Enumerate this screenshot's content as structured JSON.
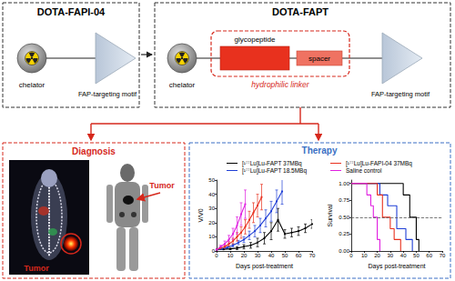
{
  "panels": {
    "fapi04": {
      "title": "DOTA-FAPI-04",
      "chelator": "chelator",
      "motif": "FAP-targeting motif"
    },
    "fapt": {
      "title": "DOTA-FAPT",
      "chelator": "chelator",
      "glycopeptide": "glycopeptide",
      "spacer": "spacer",
      "linker": "hydrophilic linker",
      "motif": "FAP-targeting motif"
    },
    "diagnosis": {
      "title": "Diagnosis",
      "labels": [
        "Tumor",
        "Tumor"
      ]
    },
    "therapy": {
      "title": "Therapy"
    }
  },
  "chart_data": [
    {
      "type": "line",
      "xlabel": "Days post-treatment",
      "ylabel": "V/V0",
      "xlim": [
        0,
        70
      ],
      "xticks": [
        0,
        10,
        20,
        30,
        40,
        50,
        60,
        70
      ],
      "ylim": [
        0,
        50
      ],
      "yticks": [
        0,
        10,
        20,
        30,
        40,
        50
      ],
      "legend": "top",
      "series": [
        {
          "name": "[¹⁷⁷Lu]Lu-FAPT 37MBq",
          "color": "#000000",
          "x": [
            0,
            5,
            10,
            15,
            20,
            25,
            30,
            35,
            40,
            45,
            50,
            55,
            60,
            65,
            70
          ],
          "values": [
            1,
            1.2,
            1.5,
            2,
            3,
            4,
            6,
            9,
            14,
            22,
            12,
            13,
            14,
            16,
            19
          ],
          "errors": [
            0.2,
            0.3,
            0.5,
            1,
            1.5,
            2,
            3,
            4,
            6,
            8,
            3,
            3,
            3,
            3,
            3
          ]
        },
        {
          "name": "[¹⁷⁷Lu]Lu-FAPT 18.5MBq",
          "color": "#1f3fd6",
          "x": [
            0,
            4,
            8,
            12,
            16,
            20,
            24,
            28,
            32,
            36,
            40,
            44,
            48
          ],
          "values": [
            1,
            1.5,
            2.5,
            4,
            6,
            8,
            11,
            14,
            18,
            23,
            28,
            35,
            42
          ],
          "errors": [
            0.2,
            0.4,
            0.6,
            1,
            1.5,
            2,
            3,
            4,
            5,
            6,
            7,
            8,
            9
          ]
        },
        {
          "name": "[¹⁷⁷Lu]Lu-FAPI-04 37MBq",
          "color": "#e8311e",
          "x": [
            0,
            3,
            6,
            9,
            12,
            15,
            18,
            21,
            24,
            27,
            30,
            33
          ],
          "values": [
            1,
            2,
            3,
            5,
            7,
            10,
            13,
            17,
            22,
            27,
            32,
            38
          ],
          "errors": [
            0.2,
            0.5,
            1,
            1.5,
            2,
            3,
            4,
            5,
            6,
            7,
            8,
            9
          ]
        },
        {
          "name": "Saline control",
          "color": "#e020e0",
          "x": [
            0,
            3,
            6,
            9,
            12,
            15,
            18,
            21
          ],
          "values": [
            1,
            3,
            5,
            8,
            12,
            18,
            26,
            33
          ],
          "errors": [
            0.3,
            1,
            2,
            3,
            4,
            6,
            8,
            10
          ]
        }
      ]
    },
    {
      "type": "step",
      "xlabel": "Days post-treatment",
      "ylabel": "Survival",
      "xlim": [
        0,
        70
      ],
      "xticks": [
        0,
        10,
        20,
        30,
        40,
        50,
        60,
        70
      ],
      "ylim": [
        0,
        1.05
      ],
      "yticks": [
        {
          "value": 0,
          "label": "0.00"
        },
        {
          "value": 0.25,
          "label": "0.25"
        },
        {
          "value": 0.5,
          "label": "0.50"
        },
        {
          "value": 0.75,
          "label": "0.75"
        },
        {
          "value": 1,
          "label": "1.00"
        }
      ],
      "median_line": 0.5,
      "series": [
        {
          "name": "[¹⁷⁷Lu]Lu-FAPT 37MBq",
          "color": "#000000",
          "x": [
            0,
            40,
            45,
            50,
            52
          ],
          "values": [
            1,
            0.83,
            0.5,
            0.17,
            0
          ]
        },
        {
          "name": "[¹⁷⁷Lu]Lu-FAPT 18.5MBq",
          "color": "#1f3fd6",
          "x": [
            0,
            22,
            28,
            35,
            42,
            47
          ],
          "values": [
            1,
            0.83,
            0.67,
            0.33,
            0.17,
            0
          ]
        },
        {
          "name": "[¹⁷⁷Lu]Lu-FAPI-04 37MBq",
          "color": "#e8311e",
          "x": [
            0,
            20,
            24,
            30,
            33,
            38
          ],
          "values": [
            1,
            0.83,
            0.5,
            0.33,
            0.17,
            0
          ]
        },
        {
          "name": "Saline control",
          "color": "#e020e0",
          "x": [
            0,
            12,
            15,
            17,
            20,
            22
          ],
          "values": [
            1,
            0.83,
            0.67,
            0.5,
            0.17,
            0
          ]
        }
      ]
    }
  ]
}
